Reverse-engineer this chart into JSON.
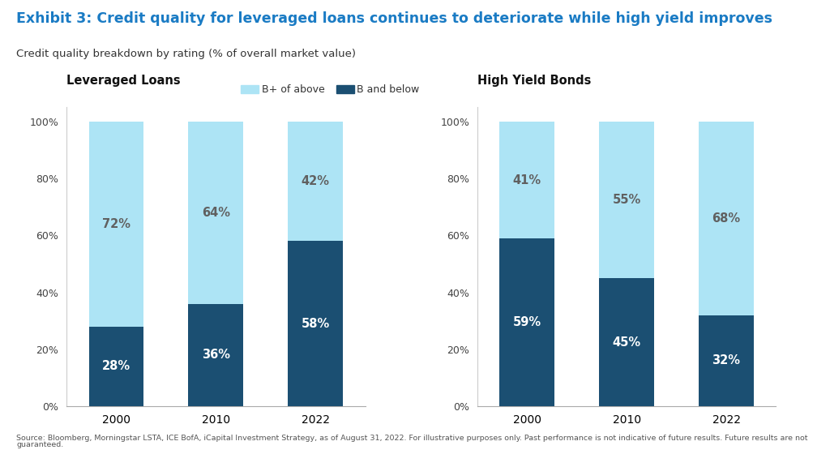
{
  "title": "Exhibit 3: Credit quality for leveraged loans continues to deteriorate while high yield improves",
  "subtitle": "Credit quality breakdown by rating (% of overall market value)",
  "left_chart_title": "Leveraged Loans",
  "right_chart_title": "High Yield Bonds",
  "legend_labels": [
    "B+ of above",
    "B and below"
  ],
  "years": [
    "2000",
    "2010",
    "2022"
  ],
  "leveraged_loans": {
    "b_and_below": [
      28,
      36,
      58
    ],
    "b_plus_above": [
      72,
      64,
      42
    ]
  },
  "high_yield_bonds": {
    "b_and_below": [
      59,
      45,
      32
    ],
    "b_plus_above": [
      41,
      55,
      68
    ]
  },
  "footnote": "Source: Bloomberg, Morningstar LSTA, ICE BofA, iCapital Investment Strategy, as of August 31, 2022. For illustrative purposes only. Past performance is not indicative of future results. Future results are not\nguaranteed.",
  "title_color": "#1A7BC4",
  "subtitle_color": "#333333",
  "dark_blue": "#1B4F72",
  "light_blue": "#ADE4F5",
  "background_color": "#FFFFFF",
  "bar_width": 0.55,
  "label_color_top": "#555555",
  "label_color_bottom": "#FFFFFF"
}
